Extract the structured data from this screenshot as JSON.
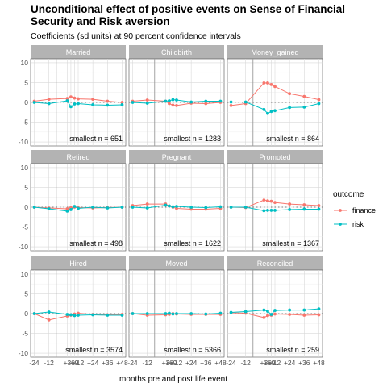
{
  "chart_data": {
    "type": "line",
    "title_line1": "Unconditional effect of positive events on Sense of Financial",
    "title_line2": "Security and Risk aversion",
    "subtitle": "Coefficients (sd units) at 90 percent confidence intervals",
    "xlabel": "months pre and post life event",
    "x": [
      -24,
      -12,
      3,
      6,
      9,
      12,
      24,
      36,
      48
    ],
    "x_tick_labels": [
      "-24",
      "-12",
      "+3",
      "+6",
      "+9",
      "+12",
      "+24",
      "+36",
      "+48"
    ],
    "event_x": -6,
    "ylim": [
      -11,
      11
    ],
    "y_ticks": [
      -10,
      -5,
      0,
      5,
      10
    ],
    "y_tick_labels": [
      "-10",
      "-5",
      "0",
      "5",
      "10"
    ],
    "legend_title": "outcome",
    "series_names": [
      "finance",
      "risk"
    ],
    "series_colors": [
      "#F8766D",
      "#00BFC4"
    ],
    "panels": [
      {
        "label": "Married",
        "n_text": "smallest n = 651",
        "finance": [
          0.3,
          0.8,
          1.0,
          1.4,
          1.1,
          0.9,
          0.8,
          0.3,
          0.0
        ],
        "risk": [
          0.0,
          -0.3,
          0.4,
          -1.1,
          -0.4,
          -0.3,
          -0.6,
          -0.7,
          -0.6
        ]
      },
      {
        "label": "Childbirth",
        "n_text": "smallest n = 1283",
        "finance": [
          0.3,
          0.6,
          0.3,
          -0.3,
          -0.7,
          -0.8,
          -0.2,
          -0.3,
          0.0
        ],
        "risk": [
          0.0,
          -0.2,
          0.3,
          0.4,
          0.7,
          0.6,
          0.1,
          0.3,
          0.3
        ]
      },
      {
        "label": "Money_gained",
        "n_text": "smallest n = 864",
        "finance": [
          -0.8,
          -0.3,
          4.9,
          4.9,
          4.5,
          4.0,
          2.2,
          1.5,
          0.7
        ],
        "risk": [
          0.1,
          0.1,
          -1.8,
          -2.8,
          -2.3,
          -2.1,
          -1.3,
          -1.2,
          -0.3
        ]
      },
      {
        "label": "Retired",
        "n_text": "smallest n = 498",
        "finance": [
          0.0,
          -0.2,
          -0.4,
          -0.1,
          0.0,
          -0.1,
          -0.2,
          -0.1,
          0.0
        ],
        "risk": [
          0.0,
          -0.4,
          -1.0,
          -0.6,
          0.2,
          -0.3,
          0.0,
          -0.2,
          0.0
        ]
      },
      {
        "label": "Pregnant",
        "n_text": "smallest n = 1622",
        "finance": [
          0.4,
          0.8,
          0.8,
          0.3,
          0.0,
          -0.3,
          -0.5,
          -0.5,
          -0.3
        ],
        "risk": [
          0.0,
          -0.2,
          0.5,
          0.3,
          0.1,
          0.2,
          0.0,
          -0.1,
          0.1
        ]
      },
      {
        "label": "Promoted",
        "n_text": "smallest n = 1367",
        "finance": [
          0.0,
          -0.1,
          1.8,
          1.6,
          1.5,
          1.2,
          0.8,
          0.6,
          0.4
        ],
        "risk": [
          0.0,
          0.0,
          -0.9,
          -0.8,
          -0.8,
          -0.8,
          -0.6,
          -0.5,
          -0.5
        ]
      },
      {
        "label": "Hired",
        "n_text": "smallest n = 3574",
        "finance": [
          0.0,
          -1.6,
          -0.6,
          -0.4,
          -0.1,
          0.1,
          -0.2,
          -0.3,
          -0.2
        ],
        "risk": [
          0.0,
          0.4,
          -0.2,
          -0.3,
          -0.5,
          -0.4,
          -0.3,
          -0.4,
          -0.4
        ]
      },
      {
        "label": "Moved",
        "n_text": "smallest n = 5366",
        "finance": [
          0.0,
          -0.4,
          -0.3,
          -0.2,
          0.0,
          -0.1,
          -0.2,
          -0.2,
          -0.2
        ],
        "risk": [
          0.0,
          0.0,
          0.0,
          0.1,
          -0.1,
          0.0,
          0.0,
          -0.1,
          0.1
        ]
      },
      {
        "label": "Reconciled",
        "n_text": "smallest n = 259",
        "finance": [
          0.2,
          0.1,
          -1.0,
          -0.5,
          -0.4,
          -0.1,
          -0.2,
          -0.4,
          -0.3
        ],
        "risk": [
          0.3,
          0.5,
          0.9,
          0.6,
          -0.2,
          0.8,
          0.9,
          0.9,
          1.2
        ]
      }
    ]
  }
}
